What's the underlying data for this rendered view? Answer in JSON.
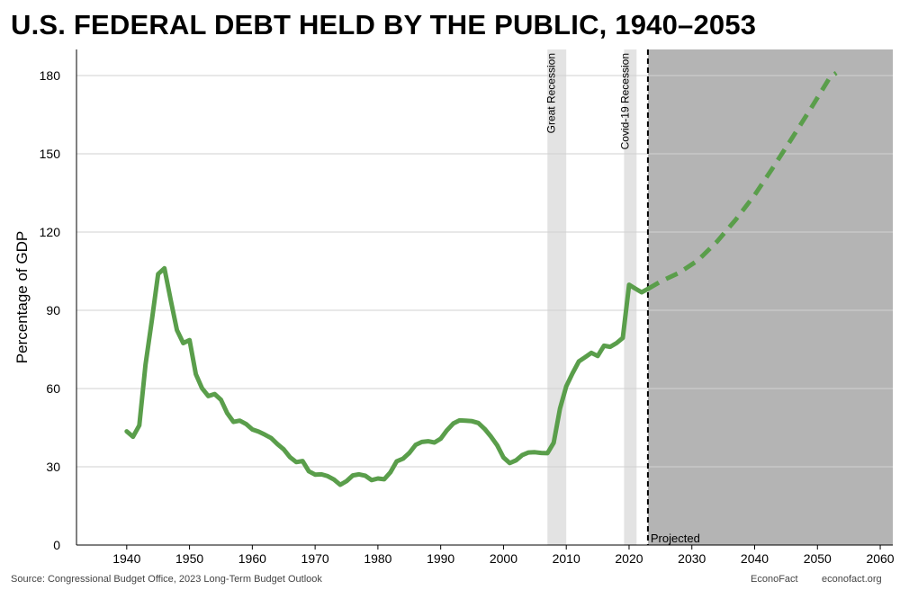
{
  "title": "U.S. FEDERAL DEBT HELD BY THE PUBLIC, 1940–2053",
  "footer": {
    "source": "Source: Congressional Budget Office, 2023 Long-Term Budget Outlook",
    "brand": "EconoFact",
    "site": "econofact.org"
  },
  "chart_data": {
    "type": "line",
    "title": "U.S. FEDERAL DEBT HELD BY THE PUBLIC, 1940–2053",
    "xlabel": "",
    "ylabel": "Percentage of GDP",
    "xlim": [
      1932,
      2062
    ],
    "ylim": [
      0,
      190
    ],
    "x_ticks": [
      1940,
      1950,
      1960,
      1970,
      1980,
      1990,
      2000,
      2010,
      2020,
      2030,
      2040,
      2050,
      2060
    ],
    "y_ticks": [
      0,
      30,
      60,
      90,
      120,
      150,
      180
    ],
    "grid": "horizontal",
    "series_color": "#5a9e4b",
    "recessions": [
      {
        "label": "Great Recession",
        "start": 2007,
        "end": 2010,
        "color": "#e3e3e3"
      },
      {
        "label": "Covid-19 Recession",
        "start": 2019.2,
        "end": 2021.2,
        "color": "#e3e3e3"
      }
    ],
    "projection": {
      "label": "Projected",
      "start": 2023,
      "color": "#b4b4b4"
    },
    "series": [
      {
        "style": "solid",
        "x": [
          1940,
          1941,
          1942,
          1943,
          1944,
          1945,
          1946,
          1947,
          1948,
          1949,
          1950,
          1951,
          1952,
          1953,
          1954,
          1955,
          1956,
          1957,
          1958,
          1959,
          1960,
          1961,
          1962,
          1963,
          1964,
          1965,
          1966,
          1967,
          1968,
          1969,
          1970,
          1971,
          1972,
          1973,
          1974,
          1975,
          1976,
          1977,
          1978,
          1979,
          1980,
          1981,
          1982,
          1983,
          1984,
          1985,
          1986,
          1987,
          1988,
          1989,
          1990,
          1991,
          1992,
          1993,
          1994,
          1995,
          1996,
          1997,
          1998,
          1999,
          2000,
          2001,
          2002,
          2003,
          2004,
          2005,
          2006,
          2007,
          2008,
          2009,
          2010,
          2011,
          2012,
          2013,
          2014,
          2015,
          2016,
          2017,
          2018,
          2019,
          2020,
          2021,
          2022,
          2023
        ],
        "values": [
          43.6,
          41.5,
          45.9,
          69.2,
          86.1,
          103.9,
          106.1,
          93.9,
          82.4,
          77.4,
          78.6,
          65.5,
          60.1,
          57.1,
          57.9,
          55.7,
          50.6,
          47.2,
          47.7,
          46.4,
          44.3,
          43.5,
          42.3,
          41.0,
          38.7,
          36.7,
          33.7,
          31.8,
          32.2,
          28.3,
          27.0,
          27.1,
          26.4,
          25.1,
          23.1,
          24.5,
          26.7,
          27.1,
          26.6,
          24.9,
          25.5,
          25.2,
          27.9,
          32.1,
          33.1,
          35.3,
          38.4,
          39.5,
          39.8,
          39.3,
          40.8,
          44.0,
          46.6,
          47.8,
          47.7,
          47.5,
          46.8,
          44.5,
          41.6,
          38.2,
          33.6,
          31.4,
          32.5,
          34.5,
          35.5,
          35.6,
          35.3,
          35.2,
          39.2,
          52.3,
          60.9,
          65.9,
          70.4,
          72.0,
          73.7,
          72.5,
          76.4,
          76.0,
          77.4,
          79.4,
          99.8,
          98.3,
          96.9,
          98.2
        ]
      },
      {
        "style": "dashed",
        "x": [
          2023,
          2025,
          2028,
          2031,
          2034,
          2037,
          2040,
          2043,
          2046,
          2049,
          2052,
          2053
        ],
        "values": [
          98.2,
          101.0,
          104.4,
          109.2,
          116.3,
          124.8,
          134.2,
          145.0,
          156.2,
          167.6,
          179.3,
          181.0
        ]
      }
    ]
  }
}
